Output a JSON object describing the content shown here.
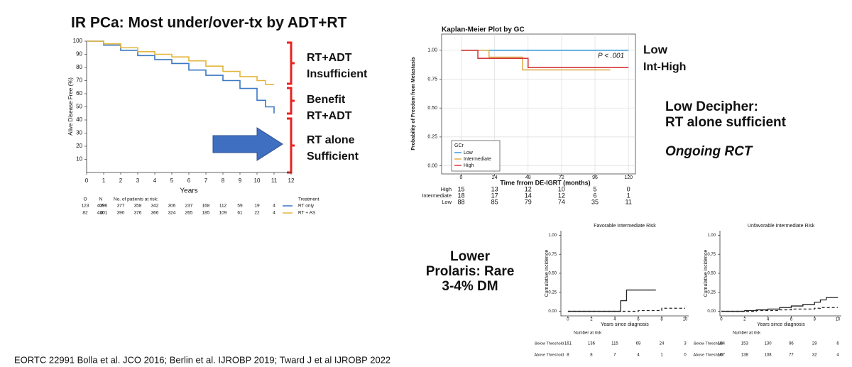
{
  "slide": {
    "title": "IR PCa: Most under/over-tx by ADT+RT",
    "decipher_note": [
      "Low Decipher:",
      "RT alone sufficient"
    ],
    "rct_note": "Ongoing RCT",
    "prolaris_note": [
      "Lower",
      "Prolaris: Rare",
      "3-4% DM"
    ],
    "footer": "EORTC 22991 Bolla et al. JCO 2016; Berlin et al. IJROBP 2019; Tward J et al IJROBP 2022"
  },
  "chart_data": [
    {
      "type": "line",
      "step": true,
      "x_label": "Years",
      "y_label": "Alive Disease Free (%)",
      "xlim": [
        0,
        12
      ],
      "ylim": [
        0,
        100
      ],
      "xticks": [
        0,
        1,
        2,
        3,
        4,
        5,
        6,
        7,
        8,
        9,
        10,
        11,
        12
      ],
      "yticks": [
        10,
        20,
        30,
        40,
        50,
        60,
        70,
        80,
        90,
        100
      ],
      "x": [
        0,
        1,
        2,
        3,
        4,
        5,
        6,
        7,
        8,
        9,
        10,
        10.5,
        11
      ],
      "series": [
        {
          "name": "RT only",
          "color": "#3b78c4",
          "line_style": "solid",
          "O": 123,
          "N": 409,
          "values": [
            100,
            97,
            93,
            89,
            86,
            83,
            78,
            74,
            70,
            64,
            55,
            50,
            45
          ],
          "at_risk": [
            396,
            377,
            358,
            342,
            306,
            237,
            168,
            112,
            59,
            19,
            4
          ]
        },
        {
          "name": "RT + AS",
          "color": "#e3b63c",
          "line_style": "solid",
          "O": 82,
          "N": 410,
          "values": [
            100,
            98,
            95,
            92,
            90,
            88,
            85,
            81,
            77,
            73,
            70,
            67,
            67
          ],
          "at_risk": [
            401,
            390,
            376,
            366,
            324,
            265,
            185,
            109,
            61,
            22,
            4
          ]
        }
      ],
      "risk_headers": [
        "O",
        "N",
        "No. of patients at risk:",
        "Treatment"
      ],
      "annotations": [
        {
          "lines": [
            "RT+ADT",
            "Insufficient"
          ],
          "color": "#e8231f"
        },
        {
          "lines": [
            "Benefit",
            "RT+ADT"
          ],
          "color": "#1ea64a"
        },
        {
          "lines": [
            "RT alone",
            "Sufficient"
          ],
          "color": "#e8231f"
        }
      ]
    },
    {
      "type": "line",
      "step": true,
      "grid": true,
      "title": "Kaplan-Meier Plot by GC",
      "x_label": "Time frrom DE-IGRT (months)",
      "y_label": "Probability of Freedom from Metastasis",
      "xlim": [
        -14,
        125
      ],
      "ylim": [
        -0.07,
        1.14
      ],
      "xticks": [
        0,
        24,
        48,
        72,
        96,
        120
      ],
      "yticks": [
        {
          "value": 0,
          "label": "0.00"
        },
        {
          "value": 0.25,
          "label": "0.25"
        },
        {
          "value": 0.5,
          "label": "0.50"
        },
        {
          "value": 0.75,
          "label": "0.75"
        },
        {
          "value": 1,
          "label": "1.00"
        }
      ],
      "x": [
        0,
        12,
        20,
        44,
        48,
        107,
        120
      ],
      "legend": "lower left",
      "legend_title": "GCr",
      "series": [
        {
          "name": "Low",
          "color": "#3a9ad9",
          "line_style": "solid",
          "values": [
            1,
            1,
            1,
            1,
            1,
            1,
            1
          ],
          "at_risk": [
            88,
            85,
            79,
            74,
            35,
            11
          ]
        },
        {
          "name": "Intermediate",
          "color": "#e0b050",
          "line_style": "solid",
          "values": [
            1,
            1,
            0.94,
            0.83,
            0.83,
            0.83,
            null
          ],
          "at_risk": [
            18,
            17,
            14,
            12,
            6,
            1
          ]
        },
        {
          "name": "High",
          "color": "#d63a3a",
          "line_style": "solid",
          "values": [
            1,
            0.93,
            0.93,
            0.93,
            0.85,
            0.85,
            0.85
          ],
          "at_risk": [
            15,
            13,
            12,
            10,
            5,
            0
          ]
        }
      ],
      "annotations": [
        {
          "lines": [
            "P < .001"
          ],
          "color": "#222222"
        },
        {
          "lines": [
            "Low"
          ],
          "color": "#8a9fb8"
        },
        {
          "lines": [
            "Int-High"
          ],
          "color": "#e8231f"
        }
      ]
    },
    {
      "type": "line",
      "step": true,
      "title": "Favorable Intermediate Risk",
      "x_label": "Years since diagnosis",
      "y_label": "Cumulative incidence",
      "xlim": [
        -0.6,
        10.3
      ],
      "ylim": [
        -0.06,
        1.06
      ],
      "xticks": [
        0,
        2,
        4,
        6,
        8,
        10
      ],
      "yticks": [
        {
          "value": 0,
          "label": "0.00"
        },
        {
          "value": 0.25,
          "label": "0.25"
        },
        {
          "value": 0.5,
          "label": "0.50"
        },
        {
          "value": 0.75,
          "label": "0.75"
        },
        {
          "value": 1,
          "label": "1.00"
        }
      ],
      "x": [
        0,
        4.5,
        5,
        6,
        7.5,
        8,
        10
      ],
      "risk_title": "Number at risk",
      "series": [
        {
          "name": "Below Threshold",
          "color": "#222222",
          "line_style": "dashed",
          "values": [
            0,
            0,
            0,
            0.01,
            0.01,
            0.04,
            0.04
          ],
          "at_risk": [
            161,
            136,
            115,
            69,
            24,
            3
          ]
        },
        {
          "name": "Above Threshold",
          "color": "#222222",
          "line_style": "solid",
          "values": [
            0,
            0.14,
            0.28,
            0.28,
            0.28,
            null,
            null
          ],
          "at_risk": [
            8,
            8,
            7,
            4,
            1,
            0
          ]
        }
      ]
    },
    {
      "type": "line",
      "step": true,
      "title": "Unfavorable Intermediate Risk",
      "x_label": "Years since diagnosis",
      "y_label": "Cumulative incidence",
      "xlim": [
        -0.12,
        10.3
      ],
      "ylim": [
        -0.06,
        1.06
      ],
      "xticks": [
        0,
        2,
        4,
        6,
        8,
        10
      ],
      "yticks": [
        {
          "value": 0,
          "label": "0.00"
        },
        {
          "value": 0.25,
          "label": "0.25"
        },
        {
          "value": 0.5,
          "label": "0.50"
        },
        {
          "value": 0.75,
          "label": "0.75"
        },
        {
          "value": 1,
          "label": "1.00"
        }
      ],
      "x": [
        0,
        2,
        3,
        4,
        5,
        6,
        7,
        8,
        8.5,
        9,
        10
      ],
      "risk_title": "Number at risk",
      "series": [
        {
          "name": "Below Threshold",
          "color": "#222222",
          "line_style": "dashed",
          "values": [
            0,
            0,
            0.01,
            0.01,
            0.02,
            0.03,
            0.03,
            0.04,
            0.05,
            0.05,
            0.05
          ],
          "at_risk": [
            184,
            153,
            130,
            96,
            29,
            6
          ]
        },
        {
          "name": "Above Threshold",
          "color": "#222222",
          "line_style": "solid",
          "values": [
            0,
            0.01,
            0.02,
            0.03,
            0.05,
            0.07,
            0.09,
            0.12,
            0.15,
            0.18,
            0.18
          ],
          "at_risk": [
            167,
            138,
            108,
            77,
            32,
            4
          ]
        }
      ]
    }
  ]
}
